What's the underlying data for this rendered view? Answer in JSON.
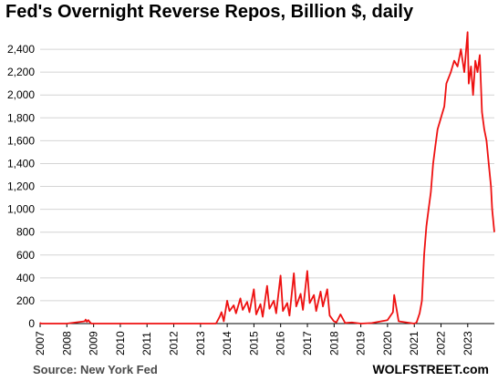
{
  "chart_data": {
    "type": "line",
    "title": "Fed's Overnight Reverse Repos, Billion $, daily",
    "xlabel": "",
    "ylabel": "",
    "ylim": [
      0,
      2600
    ],
    "xlim": [
      "2007-01-01",
      "2023-12-31"
    ],
    "y_ticks": [
      "0",
      "200",
      "400",
      "600",
      "800",
      "1,000",
      "1,200",
      "1,400",
      "1,600",
      "1,800",
      "2,000",
      "2,200",
      "2,400"
    ],
    "x_ticks": [
      "2007",
      "2008",
      "2009",
      "2010",
      "2011",
      "2012",
      "2013",
      "2014",
      "2015",
      "2016",
      "2017",
      "2018",
      "2019",
      "2020",
      "2021",
      "2022",
      "2023"
    ],
    "grid": "horizontal",
    "legend": "none",
    "series_color": "#ee1111",
    "series": [
      {
        "x": [
          "2007-01-01",
          "2007-01-05",
          "2007-02-01",
          "2008-01-01",
          "2008-09-01",
          "2008-09-15",
          "2008-10-01",
          "2008-10-20",
          "2008-11-15",
          "2008-12-01",
          "2009-01-01",
          "2011-01-01",
          "2013-01-01",
          "2013-08-01",
          "2013-09-20",
          "2013-10-15",
          "2013-11-15",
          "2013-12-31",
          "2014-02-01",
          "2014-03-31",
          "2014-05-01",
          "2014-06-30",
          "2014-08-01",
          "2014-09-30",
          "2014-11-01",
          "2014-12-31",
          "2015-02-01",
          "2015-03-31",
          "2015-05-01",
          "2015-06-30",
          "2015-08-01",
          "2015-09-30",
          "2015-11-01",
          "2015-12-31",
          "2016-02-01",
          "2016-03-31",
          "2016-05-01",
          "2016-06-30",
          "2016-08-01",
          "2016-09-30",
          "2016-11-01",
          "2016-12-30",
          "2017-02-01",
          "2017-03-31",
          "2017-05-01",
          "2017-06-30",
          "2017-08-01",
          "2017-09-29",
          "2017-11-01",
          "2017-12-29",
          "2018-02-01",
          "2018-03-29",
          "2018-06-01",
          "2018-09-01",
          "2019-01-01",
          "2019-06-01",
          "2019-12-31",
          "2020-03-15",
          "2020-04-01",
          "2020-06-01",
          "2020-12-31",
          "2021-02-01",
          "2021-03-15",
          "2021-04-15",
          "2021-05-15",
          "2021-06-15",
          "2021-07-15",
          "2021-08-15",
          "2021-09-15",
          "2021-10-15",
          "2021-11-15",
          "2021-12-31",
          "2022-02-15",
          "2022-03-15",
          "2022-05-15",
          "2022-06-30",
          "2022-08-15",
          "2022-09-30",
          "2022-11-15",
          "2022-12-30",
          "2023-01-15",
          "2023-02-15",
          "2023-03-15",
          "2023-04-15",
          "2023-05-15",
          "2023-06-15",
          "2023-07-15",
          "2023-08-15",
          "2023-09-15",
          "2023-10-15",
          "2023-11-15",
          "2023-12-01",
          "2023-12-31"
        ],
        "y": [
          10,
          2,
          0,
          0,
          20,
          35,
          15,
          30,
          10,
          0,
          0,
          0,
          0,
          0,
          60,
          100,
          20,
          200,
          110,
          160,
          90,
          220,
          120,
          190,
          100,
          300,
          80,
          170,
          60,
          330,
          130,
          200,
          90,
          420,
          110,
          180,
          70,
          440,
          150,
          260,
          120,
          460,
          180,
          250,
          110,
          280,
          150,
          300,
          70,
          20,
          10,
          80,
          5,
          10,
          0,
          5,
          30,
          100,
          250,
          20,
          0,
          10,
          90,
          200,
          600,
          850,
          1000,
          1150,
          1400,
          1550,
          1700,
          1800,
          1900,
          2100,
          2200,
          2300,
          2250,
          2400,
          2200,
          2550,
          2100,
          2250,
          2000,
          2300,
          2200,
          2350,
          1850,
          1700,
          1600,
          1400,
          1200,
          1000,
          800
        ]
      }
    ]
  },
  "footer": {
    "source": "Source: New York Fed",
    "brand": "WOLFSTREET.com"
  }
}
